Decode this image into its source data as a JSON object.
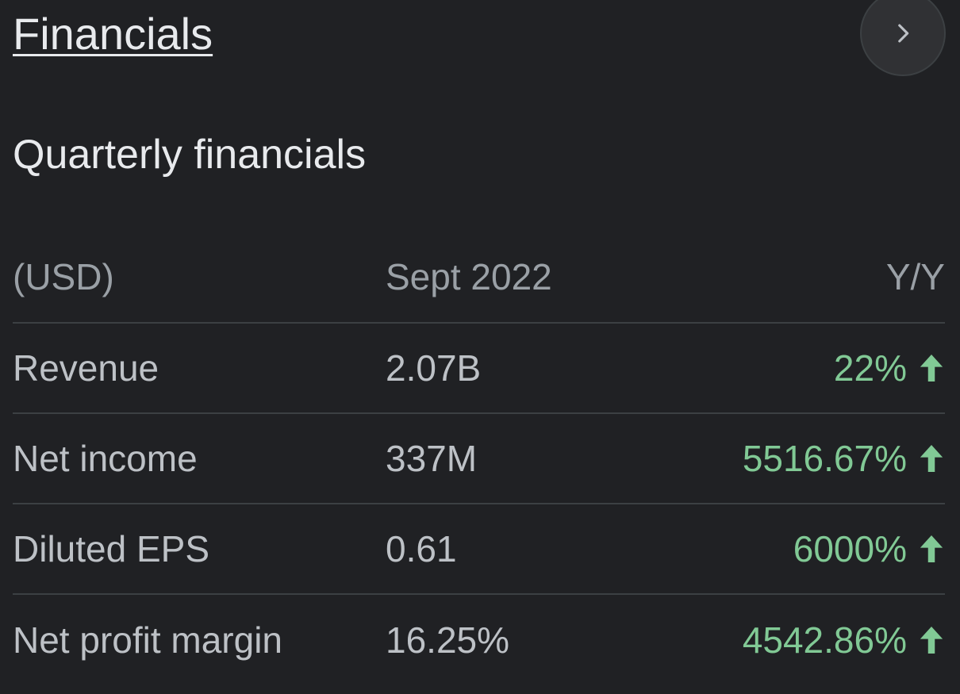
{
  "header": {
    "title": "Financials"
  },
  "section": {
    "title": "Quarterly financials"
  },
  "table": {
    "columns": [
      "(USD)",
      "Sept 2022",
      "Y/Y"
    ],
    "rows": [
      {
        "label": "Revenue",
        "value": "2.07B",
        "change": "22%",
        "trend": "up"
      },
      {
        "label": "Net income",
        "value": "337M",
        "change": "5516.67%",
        "trend": "up"
      },
      {
        "label": "Diluted EPS",
        "value": "0.61",
        "change": "6000%",
        "trend": "up"
      },
      {
        "label": "Net profit margin",
        "value": "16.25%",
        "change": "4542.86%",
        "trend": "up"
      }
    ]
  },
  "icons": {
    "next": "chevron-right-icon",
    "trend_up": "arrow-up-icon"
  },
  "colors": {
    "background": "#202124",
    "positive": "#81c995",
    "text": "#e8eaed",
    "muted": "#9aa0a6",
    "divider": "#3c4043"
  }
}
